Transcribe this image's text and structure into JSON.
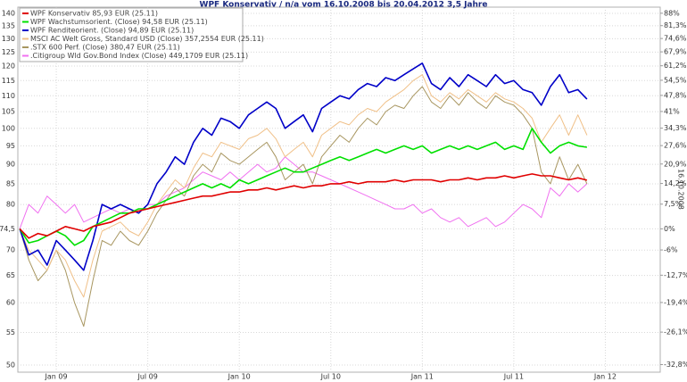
{
  "chart_data": {
    "type": "line",
    "title": "WPF Konservativ / n/a vom 16.10.2008 bis 20.04.2012 3,5 Jahre",
    "y2label": "16.10.2008",
    "log": true,
    "y2scale": "log",
    "grid": true,
    "legend": "top-left",
    "xlim": [
      2008.79,
      2012.3
    ],
    "xticks": [
      {
        "value": 2009,
        "label": "Jan 09"
      },
      {
        "value": 2009.5,
        "label": "Jul 09"
      },
      {
        "value": 2010,
        "label": "Jan 10"
      },
      {
        "value": 2010.5,
        "label": "Jul 10"
      },
      {
        "value": 2011,
        "label": "Jan 11"
      },
      {
        "value": 2011.5,
        "label": "Jul 11"
      },
      {
        "value": 2012,
        "label": "Jan 12"
      }
    ],
    "ylim": [
      50,
      140
    ],
    "yticks": [
      50,
      55,
      60,
      65,
      70,
      {
        "value": 74.5,
        "label": "74,5"
      },
      80,
      85,
      90,
      95,
      100,
      105,
      110,
      115,
      120,
      125,
      130,
      135,
      140
    ],
    "y2lim": [
      -32.89,
      87.92
    ],
    "y2ticks": [
      {
        "value": -32.8,
        "label": "-32,8%"
      },
      {
        "value": -26.1,
        "label": "-26,1%"
      },
      {
        "value": -19.4,
        "label": "-19,4%"
      },
      {
        "value": -12.7,
        "label": "-12,7%"
      },
      {
        "value": -6,
        "label": "-6%"
      },
      {
        "value": 0,
        "label": "0%"
      },
      {
        "value": 7.5,
        "label": "7,5%"
      },
      {
        "value": 14.2,
        "label": "14,2%"
      },
      {
        "value": 20.9,
        "label": "20,9%"
      },
      {
        "value": 27.6,
        "label": "27,6%"
      },
      {
        "value": 34.3,
        "label": "34,3%"
      },
      {
        "value": 41,
        "label": "41%"
      },
      {
        "value": 47.8,
        "label": "47,8%"
      },
      {
        "value": 54.5,
        "label": "54,5%"
      },
      {
        "value": 61.2,
        "label": "61,2%"
      },
      {
        "value": 67.9,
        "label": "67,9%"
      },
      {
        "value": 74.6,
        "label": "74,6%"
      },
      {
        "value": 81.3,
        "label": "81,3%"
      },
      {
        "value": 88,
        "label": "88%"
      }
    ],
    "x": [
      2008.8,
      2008.85,
      2008.9,
      2008.95,
      2009,
      2009.05,
      2009.1,
      2009.15,
      2009.2,
      2009.25,
      2009.3,
      2009.35,
      2009.4,
      2009.45,
      2009.5,
      2009.55,
      2009.6,
      2009.65,
      2009.7,
      2009.75,
      2009.8,
      2009.85,
      2009.9,
      2009.95,
      2010,
      2010.05,
      2010.1,
      2010.15,
      2010.2,
      2010.25,
      2010.3,
      2010.35,
      2010.4,
      2010.45,
      2010.5,
      2010.55,
      2010.6,
      2010.65,
      2010.7,
      2010.75,
      2010.8,
      2010.85,
      2010.9,
      2010.95,
      2011,
      2011.05,
      2011.1,
      2011.15,
      2011.2,
      2011.25,
      2011.3,
      2011.35,
      2011.4,
      2011.45,
      2011.5,
      2011.55,
      2011.6,
      2011.65,
      2011.7,
      2011.75,
      2011.8,
      2011.85,
      2011.9
    ],
    "series": [
      {
        "name": "WPF Konservativ 85,93 EUR (25.11)",
        "color": "#e00000",
        "values": [
          74.5,
          72.5,
          73.5,
          73,
          74,
          75,
          74.5,
          74,
          75,
          75.5,
          76,
          77,
          78,
          78.5,
          79,
          79.5,
          80,
          80.5,
          81,
          81.5,
          82,
          82,
          82.5,
          83,
          83,
          83.5,
          83.5,
          84,
          83.5,
          84,
          84.5,
          84,
          84.5,
          84.5,
          85,
          85,
          85.5,
          85,
          85.5,
          85.5,
          85.5,
          86,
          85.5,
          86,
          86,
          86,
          85.5,
          86,
          86,
          86.5,
          86,
          86.5,
          86.5,
          87,
          86.5,
          87,
          87.5,
          87,
          87,
          86.5,
          86,
          86.5,
          85.9
        ]
      },
      {
        "name": "WPF Wachstumsorient. (Close) 94,58 EUR (25.11)",
        "color": "#00e000",
        "values": [
          74.5,
          71.5,
          72,
          73,
          74,
          73,
          71,
          72,
          75,
          76,
          77,
          78,
          78,
          79,
          79,
          80,
          81,
          82,
          83,
          84,
          85,
          84,
          85,
          84,
          86,
          85,
          86,
          87,
          88,
          89,
          88,
          88,
          89,
          90,
          91,
          92,
          91,
          92,
          93,
          94,
          93,
          94,
          95,
          94,
          95,
          93,
          94,
          95,
          94,
          95,
          94,
          95,
          96,
          94,
          95,
          94,
          100,
          96,
          93,
          95,
          96,
          95,
          94.6
        ]
      },
      {
        "name": "WPF Renditeorient. (Close) 94,89 EUR (25.11)",
        "color": "#0000c8",
        "values": [
          74.5,
          69,
          70,
          67,
          72,
          70,
          68,
          66,
          72,
          80,
          79,
          80,
          79,
          78,
          80,
          85,
          88,
          92,
          90,
          96,
          100,
          98,
          103,
          102,
          100,
          104,
          106,
          108,
          106,
          100,
          102,
          104,
          99,
          106,
          108,
          110,
          109,
          112,
          114,
          113,
          116,
          115,
          117,
          119,
          121,
          114,
          112,
          116,
          113,
          117,
          115,
          113,
          117,
          114,
          115,
          112,
          111,
          107,
          113,
          117,
          111,
          112,
          108.9
        ]
      },
      {
        "name": "MSCI AC Welt Gross, Standard USD (Close) 357,2554 EUR (25.11)",
        "color": "#f0c088",
        "values": [
          74.5,
          70,
          68,
          66,
          70,
          68,
          64,
          61,
          68,
          74,
          75,
          76,
          74,
          73,
          76,
          80,
          83,
          86,
          84,
          89,
          93,
          92,
          96,
          95,
          94,
          97,
          98,
          100,
          97,
          92,
          94,
          96,
          92,
          98,
          100,
          102,
          101,
          104,
          106,
          105,
          108,
          110,
          112,
          115,
          117,
          110,
          108,
          111,
          109,
          112,
          110,
          108,
          111,
          109,
          108,
          106,
          103,
          96,
          100,
          104,
          98,
          104,
          98
        ]
      },
      {
        "name": ".STX 600 Perf. (Close) 380,47 EUR (25.11)",
        "color": "#a89660",
        "values": [
          74.5,
          68,
          64,
          66,
          70,
          66,
          60,
          56,
          64,
          72,
          71,
          74,
          72,
          71,
          74,
          78,
          81,
          84,
          82,
          87,
          90,
          88,
          93,
          91,
          90,
          92,
          94,
          96,
          92,
          86,
          88,
          90,
          85,
          92,
          95,
          98,
          96,
          100,
          103,
          101,
          105,
          107,
          106,
          110,
          113,
          108,
          106,
          110,
          107,
          111,
          108,
          106,
          110,
          108,
          107,
          104,
          100,
          88,
          85,
          92,
          86,
          90,
          85
        ]
      },
      {
        "name": ".Citigroup Wld Gov.Bond Index (Close) 449,1709 EUR (25.11)",
        "color": "#f070f0",
        "values": [
          74.5,
          80,
          78,
          82,
          80,
          78,
          80,
          76,
          77,
          78,
          79,
          78,
          79,
          78,
          80,
          80,
          82,
          83,
          84,
          86,
          88,
          87,
          86,
          88,
          86,
          88,
          90,
          88,
          89,
          92,
          90,
          88,
          88,
          87,
          86,
          85,
          84,
          83,
          82,
          81,
          80,
          79,
          79,
          80,
          78,
          79,
          77,
          76,
          77,
          75,
          76,
          77,
          75,
          76,
          78,
          80,
          79,
          77,
          84,
          82,
          85,
          83,
          85
        ]
      }
    ]
  }
}
